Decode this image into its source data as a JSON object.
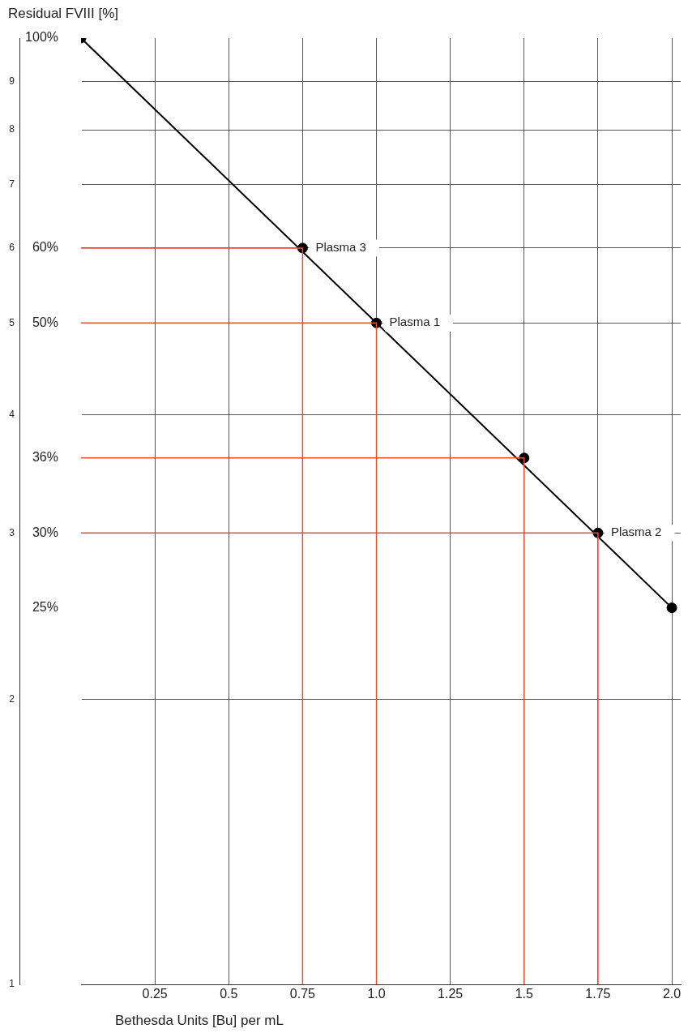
{
  "chart_data": {
    "type": "scatter",
    "xlabel": "Bethesda Units [Bu] per mL",
    "ylabel": "Residual FVIII [%]",
    "xlim": [
      0,
      2.03
    ],
    "xticks": [
      0.25,
      0.5,
      0.75,
      {
        "value": 1,
        "label": "1.0"
      },
      1.25,
      1.5,
      1.75,
      {
        "value": 2,
        "label": "2.0"
      }
    ],
    "ylim": [
      1,
      10
    ],
    "log": "y",
    "yticks": [
      1,
      2,
      3,
      4,
      5,
      6,
      7,
      8,
      9
    ],
    "grid": true,
    "legend": false,
    "series": [
      {
        "type": "line",
        "marker": "none",
        "color": "#e8512a",
        "x": [
          0,
          0.75,
          0.75
        ],
        "values": [
          6,
          6,
          1
        ]
      },
      {
        "type": "line",
        "marker": "none",
        "color": "#e8512a",
        "x": [
          0,
          1,
          1
        ],
        "values": [
          5,
          5,
          1
        ]
      },
      {
        "type": "line",
        "marker": "none",
        "color": "#e8512a",
        "x": [
          0,
          1.5,
          1.5
        ],
        "values": [
          3.6,
          3.6,
          1
        ]
      },
      {
        "type": "line",
        "marker": "none",
        "color": "#e8512a",
        "x": [
          0,
          1.75,
          1.75
        ],
        "values": [
          3,
          3,
          1
        ]
      },
      {
        "type": "line",
        "marker": "none",
        "color": "#000000",
        "x": [
          0,
          2
        ],
        "values": [
          10,
          2.5
        ]
      },
      {
        "type": "scatter",
        "marker": "circle",
        "color": "#000000",
        "x": [
          0,
          0.75,
          1,
          1.5,
          1.75,
          2
        ],
        "values": [
          10,
          6,
          5,
          3.6,
          3,
          2.5
        ]
      }
    ],
    "annotations": [
      {
        "text": "Plasma 3",
        "x": 0.75,
        "y": 6
      },
      {
        "text": "Plasma 1",
        "x": 1,
        "y": 5
      },
      {
        "text": "Plasma 2",
        "x": 1.75,
        "y": 3
      },
      {
        "text": "100%",
        "x": 0,
        "y": 10
      },
      {
        "text": "60%",
        "x": 0,
        "y": 6
      },
      {
        "text": "50%",
        "x": 0,
        "y": 5
      },
      {
        "text": "36%",
        "x": 0,
        "y": 3.6
      },
      {
        "text": "30%",
        "x": 0,
        "y": 3
      },
      "25%"
    ]
  }
}
